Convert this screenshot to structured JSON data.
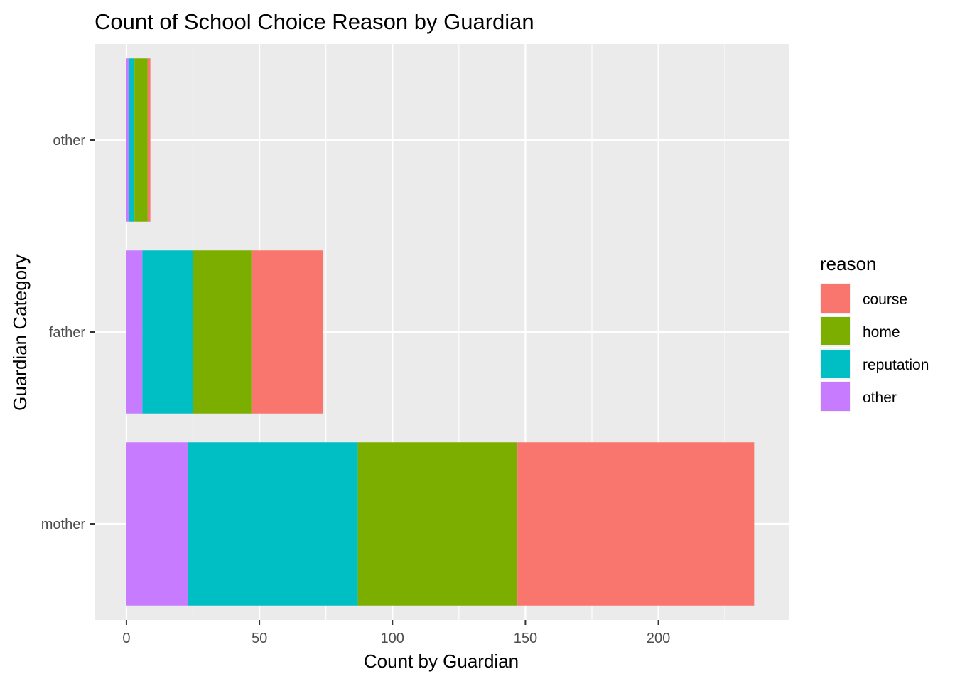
{
  "chart_data": {
    "type": "bar",
    "orientation": "horizontal",
    "stacked": true,
    "title": "Count of School Choice Reason by Guardian",
    "xlabel": "Count by Guardian",
    "ylabel": "Guardian Category",
    "xlim": [
      -12,
      249
    ],
    "x_ticks": [
      0,
      50,
      100,
      150,
      200
    ],
    "x_tick_labels": [
      "0",
      "50",
      "100",
      "150",
      "200"
    ],
    "categories": [
      "mother",
      "father",
      "other"
    ],
    "legend": {
      "title": "reason",
      "position": "right",
      "entries": [
        "course",
        "home",
        "reputation",
        "other"
      ]
    },
    "stack_order_from_zero": [
      "other",
      "reputation",
      "home",
      "course"
    ],
    "series": [
      {
        "name": "course",
        "color": "#F8766D",
        "values": [
          89,
          27,
          1
        ]
      },
      {
        "name": "home",
        "color": "#7CAE00",
        "values": [
          60,
          22,
          5
        ]
      },
      {
        "name": "reputation",
        "color": "#00BFC4",
        "values": [
          64,
          19,
          2
        ]
      },
      {
        "name": "other",
        "color": "#C77CFF",
        "values": [
          23,
          6,
          1
        ]
      }
    ],
    "grid": true,
    "panel_background": "#EBEBEB",
    "grid_color": "#FFFFFF"
  }
}
